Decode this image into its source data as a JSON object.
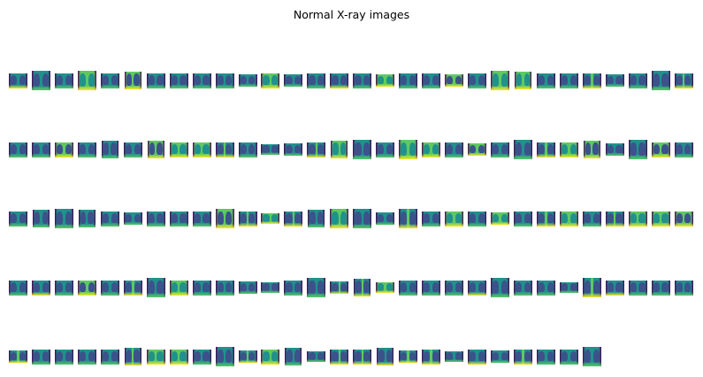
{
  "figure": {
    "title": "Normal X-ray images"
  },
  "thumbnail_grid": {
    "rows": 5,
    "columns": 30,
    "row_counts": [
      30,
      30,
      30,
      30,
      26
    ],
    "colormap": "viridis",
    "axes": "off"
  },
  "colors": {
    "background": "#ffffff",
    "viridis_dark": "#440154",
    "viridis_blue": "#3b528b",
    "viridis_teal": "#21918c",
    "viridis_green": "#5ec962",
    "viridis_yellow": "#fde725"
  }
}
